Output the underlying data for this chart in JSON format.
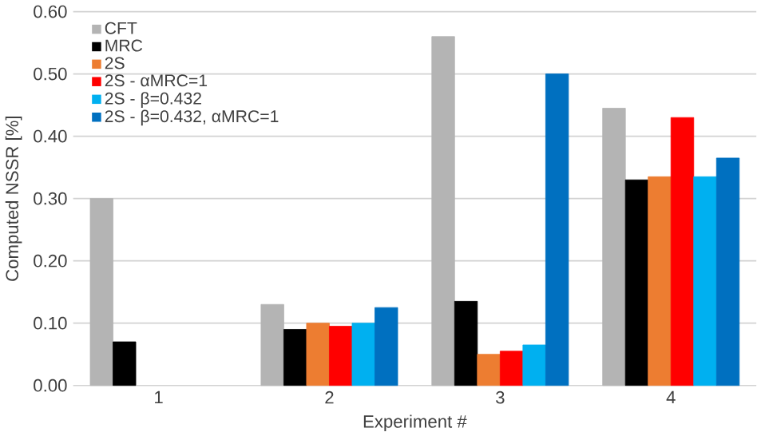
{
  "chart_data": {
    "type": "bar",
    "xlabel": "Experiment #",
    "ylabel": "Computed NSSR [%]",
    "categories": [
      "1",
      "2",
      "3",
      "4"
    ],
    "series": [
      {
        "name": "CFT",
        "color": "#b4b4b4",
        "values": [
          0.3,
          0.13,
          0.56,
          0.445
        ]
      },
      {
        "name": "MRC",
        "color": "#000000",
        "values": [
          0.07,
          0.09,
          0.135,
          0.33
        ]
      },
      {
        "name": "2S",
        "color": "#ed7d31",
        "values": [
          null,
          0.1,
          0.05,
          0.335
        ]
      },
      {
        "name": "2S - αMRC=1",
        "color": "#ff0000",
        "values": [
          null,
          0.095,
          0.055,
          0.43
        ]
      },
      {
        "name": "2S - β=0.432",
        "color": "#00b0f0",
        "values": [
          null,
          0.1,
          0.065,
          0.335
        ]
      },
      {
        "name": "2S - β=0.432, αMRC=1",
        "color": "#0070c0",
        "values": [
          null,
          0.125,
          0.5,
          0.365
        ]
      }
    ],
    "ylim": [
      0,
      0.6
    ],
    "yticks": [
      {
        "value": 0,
        "label": "0.00"
      },
      {
        "value": 0.1,
        "label": "0.10"
      },
      {
        "value": 0.2,
        "label": "0.20"
      },
      {
        "value": 0.3,
        "label": "0.30"
      },
      {
        "value": 0.4,
        "label": "0.40"
      },
      {
        "value": 0.5,
        "label": "0.50"
      },
      {
        "value": 0.6,
        "label": "0.60"
      }
    ],
    "grid": "y",
    "legend": "top left"
  }
}
